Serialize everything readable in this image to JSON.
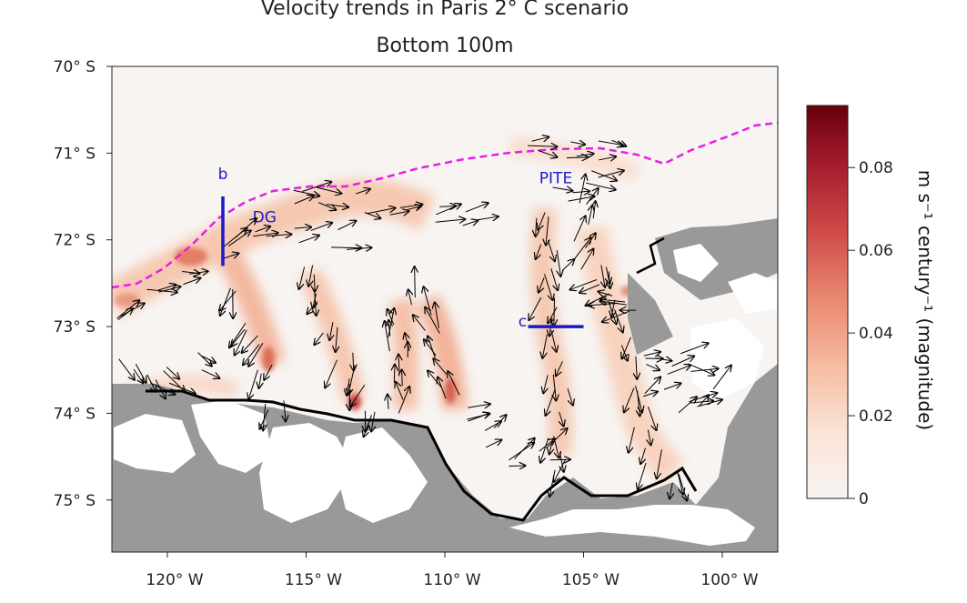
{
  "chart_data": {
    "type": "heatmap",
    "title": "Velocity trends in Paris 2° C scenario",
    "subtitle": "Bottom 100m",
    "x_axis": {
      "ticks": [
        {
          "value": -120,
          "label": "120° W"
        },
        {
          "value": -115,
          "label": "115° W"
        },
        {
          "value": -110,
          "label": "110° W"
        },
        {
          "value": -105,
          "label": "105° W"
        },
        {
          "value": -100,
          "label": "100° W"
        }
      ],
      "range": [
        -122,
        -98
      ]
    },
    "y_axis": {
      "ticks": [
        {
          "value": -70,
          "label": "70° S"
        },
        {
          "value": -71,
          "label": "71° S"
        },
        {
          "value": -72,
          "label": "72° S"
        },
        {
          "value": -73,
          "label": "73° S"
        },
        {
          "value": -74,
          "label": "74° S"
        },
        {
          "value": -75,
          "label": "75° S"
        }
      ],
      "range": [
        -75.6,
        -70
      ]
    },
    "colorbar": {
      "label": "m s⁻¹ century⁻¹ (magnitude)",
      "range": [
        0,
        0.095
      ],
      "ticks": [
        {
          "value": 0,
          "label": "0"
        },
        {
          "value": 0.02,
          "label": "0.02"
        },
        {
          "value": 0.04,
          "label": "0.04"
        },
        {
          "value": 0.06,
          "label": "0.06"
        },
        {
          "value": 0.08,
          "label": "0.08"
        }
      ],
      "colors": [
        "#f7f4f2",
        "#fbe3d6",
        "#f6bba0",
        "#e98870",
        "#cf4a48",
        "#a51c2d",
        "#67000d"
      ]
    },
    "annotations": [
      {
        "label": "b",
        "lon": -118.0,
        "lat": -71.3
      },
      {
        "label": "DG",
        "lon": -116.5,
        "lat": -71.8
      },
      {
        "label": "PITE",
        "lon": -106.0,
        "lat": -71.35
      },
      {
        "label": "c",
        "lon": -107.2,
        "lat": -73.0
      }
    ],
    "sections": [
      {
        "name": "b",
        "lon1": -118.0,
        "lat1": -71.5,
        "lon2": -118.0,
        "lat2": -72.3
      },
      {
        "name": "c",
        "lon1": -107.0,
        "lat1": -73.0,
        "lon2": -105.0,
        "lat2": -73.0
      }
    ],
    "shelf_break_line": "dashed magenta",
    "land_color": "#999999",
    "ice_color": "#ffffff"
  }
}
